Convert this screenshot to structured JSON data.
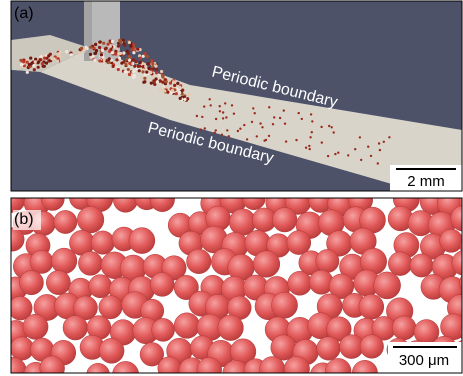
{
  "panels": [
    {
      "label": "(a)",
      "annotations": [
        "Periodic boundary",
        "Periodic boundary"
      ],
      "scale_bar": "2 mm"
    },
    {
      "label": "(b)",
      "scale_bar": "300 μm"
    }
  ]
}
